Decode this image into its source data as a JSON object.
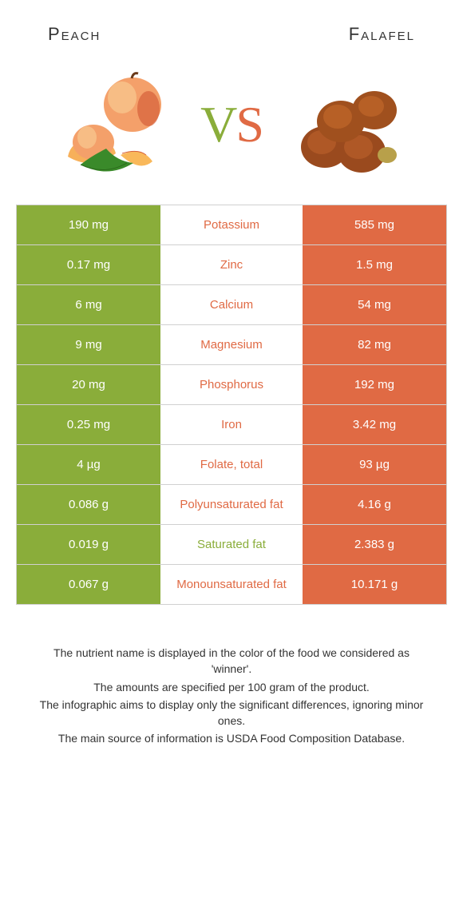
{
  "colors": {
    "peach": "#8aad3a",
    "falafel": "#e06a44",
    "text": "#333333",
    "border": "#d0d0d0",
    "white": "#ffffff"
  },
  "header": {
    "left": "Peach",
    "right": "Falafel",
    "vs_v": "V",
    "vs_s": "S"
  },
  "rows": [
    {
      "left": "190 mg",
      "label": "Potassium",
      "right": "585 mg",
      "winner": "falafel"
    },
    {
      "left": "0.17 mg",
      "label": "Zinc",
      "right": "1.5 mg",
      "winner": "falafel"
    },
    {
      "left": "6 mg",
      "label": "Calcium",
      "right": "54 mg",
      "winner": "falafel"
    },
    {
      "left": "9 mg",
      "label": "Magnesium",
      "right": "82 mg",
      "winner": "falafel"
    },
    {
      "left": "20 mg",
      "label": "Phosphorus",
      "right": "192 mg",
      "winner": "falafel"
    },
    {
      "left": "0.25 mg",
      "label": "Iron",
      "right": "3.42 mg",
      "winner": "falafel"
    },
    {
      "left": "4 µg",
      "label": "Folate, total",
      "right": "93 µg",
      "winner": "falafel"
    },
    {
      "left": "0.086 g",
      "label": "Polyunsaturated fat",
      "right": "4.16 g",
      "winner": "falafel"
    },
    {
      "left": "0.019 g",
      "label": "Saturated fat",
      "right": "2.383 g",
      "winner": "peach"
    },
    {
      "left": "0.067 g",
      "label": "Monounsaturated fat",
      "right": "10.171 g",
      "winner": "falafel"
    }
  ],
  "footnotes": {
    "l1": "The nutrient name is displayed in the color of the food we considered as 'winner'.",
    "l2": "The amounts are specified per 100 gram of the product.",
    "l3": "The infographic aims to display only the significant differences, ignoring minor ones.",
    "l4": "The main source of information is USDA Food Composition Database."
  }
}
